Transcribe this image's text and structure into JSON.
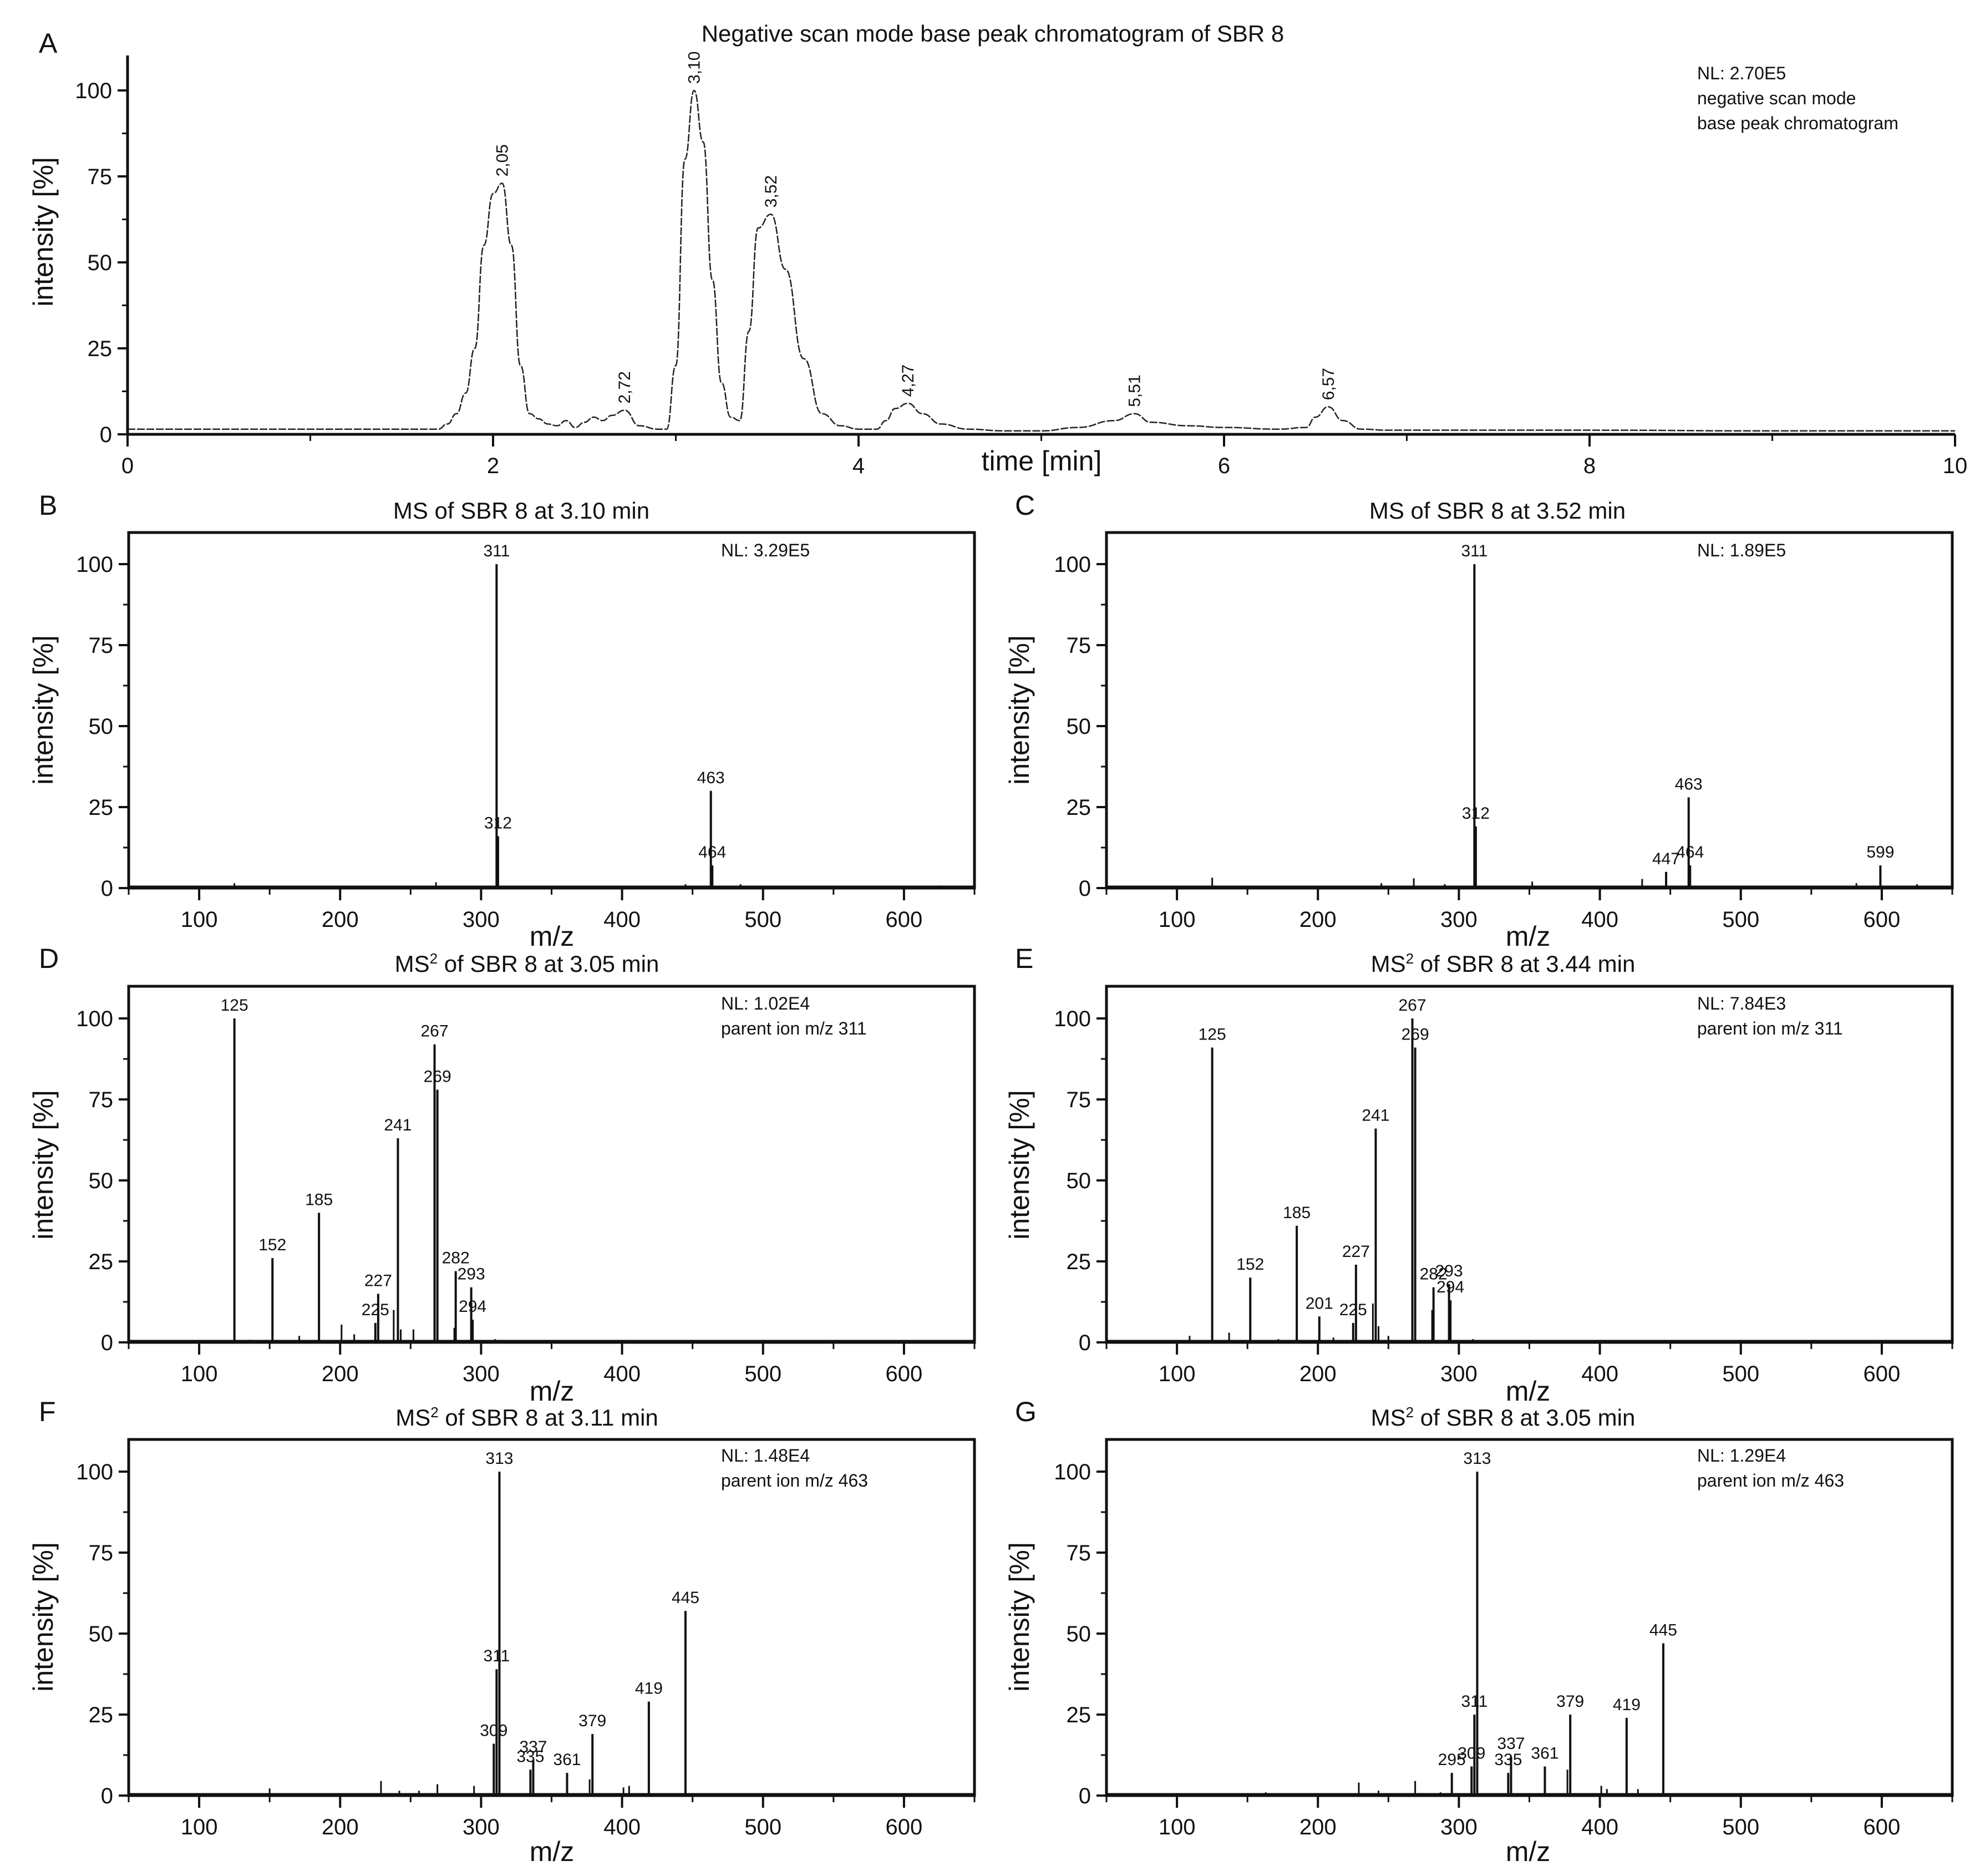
{
  "figure": {
    "panel_A": {
      "letter": "A",
      "title": "Negative scan mode base peak chromatogram of SBR 8",
      "annotation_lines": [
        "NL: 2.70E5",
        "negative scan mode",
        "base peak chromatogram"
      ],
      "xlabel": "time [min]",
      "ylabel": "intensity [%]"
    },
    "panel_B": {
      "letter": "B",
      "title": "MS of SBR 8 at 3.10 min",
      "annotation_lines": [
        "NL: 3.29E5"
      ],
      "xlabel": "m/z",
      "ylabel": "intensity [%]"
    },
    "panel_C": {
      "letter": "C",
      "title": "MS of SBR 8 at 3.52 min",
      "annotation_lines": [
        "NL: 1.89E5"
      ],
      "xlabel": "m/z",
      "ylabel": "intensity [%]"
    },
    "panel_D": {
      "letter": "D",
      "title_prefix": "MS",
      "title_sup": "2",
      "title_suffix": " of SBR 8 at 3.05 min",
      "annotation_lines": [
        "NL: 1.02E4",
        "parent ion m/z 311"
      ],
      "xlabel": "m/z",
      "ylabel": "intensity [%]"
    },
    "panel_E": {
      "letter": "E",
      "title_prefix": "MS",
      "title_sup": "2",
      "title_suffix": " of SBR 8 at 3.44 min",
      "annotation_lines": [
        "NL: 7.84E3",
        "parent ion m/z 311"
      ],
      "xlabel": "m/z",
      "ylabel": "intensity [%]"
    },
    "panel_F": {
      "letter": "F",
      "title_prefix": "MS",
      "title_sup": "2",
      "title_suffix": " of SBR 8 at 3.11 min",
      "annotation_lines": [
        "NL: 1.48E4",
        "parent ion m/z 463"
      ],
      "xlabel": "m/z",
      "ylabel": "intensity [%]"
    },
    "panel_G": {
      "letter": "G",
      "title_prefix": "MS",
      "title_sup": "2",
      "title_suffix": " of SBR 8 at 3.05 min",
      "annotation_lines": [
        "NL: 1.29E4",
        "parent ion m/z 463"
      ],
      "xlabel": "m/z",
      "ylabel": "intensity [%]"
    }
  },
  "chart_data": [
    {
      "id": "A",
      "type": "line",
      "title": "Negative scan mode base peak chromatogram of SBR 8",
      "xlabel": "time [min]",
      "ylabel": "intensity [%]",
      "xlim": [
        0,
        10
      ],
      "ylim": [
        0,
        110
      ],
      "xticks": [
        0,
        2,
        4,
        6,
        8,
        10
      ],
      "yticks": [
        0,
        25,
        50,
        75,
        100
      ],
      "grid": false,
      "annotation": "NL: 2.70E5 negative scan mode base peak chromatogram",
      "peak_labels": [
        {
          "x": 2.05,
          "y": 73,
          "label": "2,05"
        },
        {
          "x": 2.72,
          "y": 7,
          "label": "2,72"
        },
        {
          "x": 3.1,
          "y": 100,
          "label": "3,10"
        },
        {
          "x": 3.52,
          "y": 64,
          "label": "3,52"
        },
        {
          "x": 4.27,
          "y": 9,
          "label": "4,27"
        },
        {
          "x": 5.51,
          "y": 6,
          "label": "5,51"
        },
        {
          "x": 6.57,
          "y": 8,
          "label": "6,57"
        }
      ],
      "x": [
        0,
        1.7,
        1.75,
        1.8,
        1.85,
        1.9,
        1.95,
        2.0,
        2.05,
        2.1,
        2.15,
        2.2,
        2.25,
        2.3,
        2.35,
        2.4,
        2.45,
        2.5,
        2.55,
        2.6,
        2.65,
        2.72,
        2.8,
        2.9,
        2.95,
        3.0,
        3.05,
        3.1,
        3.15,
        3.2,
        3.25,
        3.3,
        3.35,
        3.4,
        3.45,
        3.52,
        3.6,
        3.7,
        3.8,
        3.9,
        4.0,
        4.1,
        4.15,
        4.2,
        4.27,
        4.35,
        4.45,
        4.6,
        4.8,
        5.0,
        5.2,
        5.4,
        5.51,
        5.6,
        5.8,
        6.0,
        6.3,
        6.45,
        6.5,
        6.57,
        6.65,
        6.75,
        6.9,
        7.5,
        8.0,
        9.0,
        10.0
      ],
      "values": [
        1.5,
        1.5,
        3,
        6,
        12,
        25,
        55,
        70,
        73,
        55,
        20,
        6,
        4.5,
        3,
        2.5,
        4,
        2,
        3.5,
        5,
        4,
        5.5,
        7,
        2.5,
        1.5,
        1.5,
        20,
        80,
        100,
        85,
        45,
        15,
        5,
        4,
        30,
        60,
        64,
        48,
        22,
        6,
        2.5,
        1.5,
        1.5,
        4,
        7.5,
        9,
        6,
        3,
        1.5,
        1,
        1,
        2,
        4,
        6,
        3.5,
        2.5,
        2,
        1.5,
        2,
        5,
        8,
        4,
        1.5,
        1.2,
        1.2,
        1.2,
        1,
        1
      ]
    },
    {
      "id": "B",
      "type": "bar",
      "title": "MS of SBR 8 at 3.10 min",
      "xlabel": "m/z",
      "ylabel": "intensity [%]",
      "xlim": [
        50,
        650
      ],
      "ylim": [
        0,
        110
      ],
      "xticks": [
        100,
        200,
        300,
        400,
        500,
        600
      ],
      "yticks": [
        0,
        25,
        50,
        75,
        100
      ],
      "annotation": "NL: 3.29E5",
      "peaks": [
        {
          "mz": 311,
          "value": 100,
          "label": "311"
        },
        {
          "mz": 312,
          "value": 16,
          "label": "312"
        },
        {
          "mz": 463,
          "value": 30,
          "label": "463"
        },
        {
          "mz": 464,
          "value": 7,
          "label": "464"
        }
      ],
      "minor_peaks": [
        [
          125,
          1.5
        ],
        [
          268,
          1.8
        ],
        [
          445,
          1.2
        ],
        [
          484,
          1.2
        ],
        [
          625,
          0.8
        ]
      ]
    },
    {
      "id": "C",
      "type": "bar",
      "title": "MS of SBR 8 at 3.52 min",
      "xlabel": "m/z",
      "ylabel": "intensity [%]",
      "xlim": [
        50,
        650
      ],
      "ylim": [
        0,
        110
      ],
      "xticks": [
        100,
        200,
        300,
        400,
        500,
        600
      ],
      "yticks": [
        0,
        25,
        50,
        75,
        100
      ],
      "annotation": "NL: 1.89E5",
      "peaks": [
        {
          "mz": 311,
          "value": 100,
          "label": "311"
        },
        {
          "mz": 312,
          "value": 19,
          "label": "312"
        },
        {
          "mz": 447,
          "value": 5,
          "label": "447"
        },
        {
          "mz": 463,
          "value": 28,
          "label": "463"
        },
        {
          "mz": 464,
          "value": 7,
          "label": "464"
        },
        {
          "mz": 599,
          "value": 7,
          "label": "599"
        }
      ],
      "minor_peaks": [
        [
          125,
          3.2
        ],
        [
          245,
          1.5
        ],
        [
          268,
          3
        ],
        [
          290,
          1.2
        ],
        [
          352,
          2
        ],
        [
          430,
          2.8
        ],
        [
          582,
          1.5
        ],
        [
          625,
          1.2
        ]
      ]
    },
    {
      "id": "D",
      "type": "bar",
      "title": "MS2 of SBR 8 at 3.05 min",
      "xlabel": "m/z",
      "ylabel": "intensity [%]",
      "xlim": [
        50,
        650
      ],
      "ylim": [
        0,
        110
      ],
      "xticks": [
        100,
        200,
        300,
        400,
        500,
        600
      ],
      "yticks": [
        0,
        25,
        50,
        75,
        100
      ],
      "annotation": "NL: 1.02E4 parent ion m/z 311",
      "peaks": [
        {
          "mz": 125,
          "value": 100,
          "label": "125"
        },
        {
          "mz": 152,
          "value": 26,
          "label": "152"
        },
        {
          "mz": 185,
          "value": 40,
          "label": "185"
        },
        {
          "mz": 225,
          "value": 6,
          "label": "225"
        },
        {
          "mz": 227,
          "value": 15,
          "label": "227"
        },
        {
          "mz": 241,
          "value": 63,
          "label": "241"
        },
        {
          "mz": 267,
          "value": 92,
          "label": "267"
        },
        {
          "mz": 269,
          "value": 78,
          "label": "269"
        },
        {
          "mz": 282,
          "value": 22,
          "label": "282"
        },
        {
          "mz": 293,
          "value": 17,
          "label": "293"
        },
        {
          "mz": 294,
          "value": 7,
          "label": "294"
        }
      ],
      "minor_peaks": [
        [
          136,
          0.8
        ],
        [
          171,
          2
        ],
        [
          201,
          5.5
        ],
        [
          210,
          2.5
        ],
        [
          238,
          10
        ],
        [
          243,
          4
        ],
        [
          252,
          4
        ],
        [
          281,
          4.5
        ],
        [
          310,
          1
        ]
      ]
    },
    {
      "id": "E",
      "type": "bar",
      "title": "MS2 of SBR 8 at 3.44 min",
      "xlabel": "m/z",
      "ylabel": "intensity [%]",
      "xlim": [
        50,
        650
      ],
      "ylim": [
        0,
        110
      ],
      "xticks": [
        100,
        200,
        300,
        400,
        500,
        600
      ],
      "yticks": [
        0,
        25,
        50,
        75,
        100
      ],
      "annotation": "NL: 7.84E3 parent ion m/z 311",
      "peaks": [
        {
          "mz": 125,
          "value": 91,
          "label": "125"
        },
        {
          "mz": 152,
          "value": 20,
          "label": "152"
        },
        {
          "mz": 185,
          "value": 36,
          "label": "185"
        },
        {
          "mz": 201,
          "value": 8,
          "label": "201"
        },
        {
          "mz": 225,
          "value": 6,
          "label": "225"
        },
        {
          "mz": 227,
          "value": 24,
          "label": "227"
        },
        {
          "mz": 241,
          "value": 66,
          "label": "241"
        },
        {
          "mz": 267,
          "value": 100,
          "label": "267"
        },
        {
          "mz": 269,
          "value": 91,
          "label": "269"
        },
        {
          "mz": 282,
          "value": 17,
          "label": "282"
        },
        {
          "mz": 293,
          "value": 18,
          "label": "293"
        },
        {
          "mz": 294,
          "value": 13,
          "label": "294"
        }
      ],
      "minor_peaks": [
        [
          109,
          2
        ],
        [
          137,
          3
        ],
        [
          172,
          1
        ],
        [
          211,
          1.5
        ],
        [
          239,
          12
        ],
        [
          243,
          5
        ],
        [
          250,
          2
        ],
        [
          281,
          10
        ],
        [
          310,
          1
        ]
      ]
    },
    {
      "id": "F",
      "type": "bar",
      "title": "MS2 of SBR 8 at 3.11 min",
      "xlabel": "m/z",
      "ylabel": "intensity [%]",
      "xlim": [
        50,
        650
      ],
      "ylim": [
        0,
        110
      ],
      "xticks": [
        100,
        200,
        300,
        400,
        500,
        600
      ],
      "yticks": [
        0,
        25,
        50,
        75,
        100
      ],
      "annotation": "NL: 1.48E4 parent ion m/z 463",
      "peaks": [
        {
          "mz": 309,
          "value": 16,
          "label": "309"
        },
        {
          "mz": 311,
          "value": 39,
          "label": "311"
        },
        {
          "mz": 313,
          "value": 100,
          "label": "313"
        },
        {
          "mz": 335,
          "value": 8,
          "label": "335"
        },
        {
          "mz": 337,
          "value": 11,
          "label": "337"
        },
        {
          "mz": 361,
          "value": 7,
          "label": "361"
        },
        {
          "mz": 379,
          "value": 19,
          "label": "379"
        },
        {
          "mz": 419,
          "value": 29,
          "label": "419"
        },
        {
          "mz": 445,
          "value": 57,
          "label": "445"
        }
      ],
      "minor_peaks": [
        [
          150,
          2.2
        ],
        [
          229,
          4.5
        ],
        [
          242,
          1.5
        ],
        [
          256,
          1.5
        ],
        [
          269,
          3.5
        ],
        [
          295,
          3
        ],
        [
          377,
          5
        ],
        [
          401,
          2.5
        ],
        [
          405,
          3
        ]
      ]
    },
    {
      "id": "G",
      "type": "bar",
      "title": "MS2 of SBR 8 at 3.05 min",
      "xlabel": "m/z",
      "ylabel": "intensity [%]",
      "xlim": [
        50,
        650
      ],
      "ylim": [
        0,
        110
      ],
      "xticks": [
        100,
        200,
        300,
        400,
        500,
        600
      ],
      "yticks": [
        0,
        25,
        50,
        75,
        100
      ],
      "annotation": "NL: 1.29E4 parent ion m/z 463",
      "peaks": [
        {
          "mz": 295,
          "value": 7,
          "label": "295"
        },
        {
          "mz": 309,
          "value": 9,
          "label": "309"
        },
        {
          "mz": 311,
          "value": 25,
          "label": "311"
        },
        {
          "mz": 313,
          "value": 100,
          "label": "313"
        },
        {
          "mz": 335,
          "value": 7,
          "label": "335"
        },
        {
          "mz": 337,
          "value": 12,
          "label": "337"
        },
        {
          "mz": 361,
          "value": 9,
          "label": "361"
        },
        {
          "mz": 379,
          "value": 25,
          "label": "379"
        },
        {
          "mz": 419,
          "value": 24,
          "label": "419"
        },
        {
          "mz": 445,
          "value": 47,
          "label": "445"
        }
      ],
      "minor_peaks": [
        [
          163,
          1
        ],
        [
          229,
          4
        ],
        [
          243,
          1.5
        ],
        [
          269,
          4.5
        ],
        [
          287,
          1
        ],
        [
          377,
          8
        ],
        [
          401,
          3
        ],
        [
          405,
          2
        ],
        [
          427,
          2
        ]
      ]
    }
  ]
}
